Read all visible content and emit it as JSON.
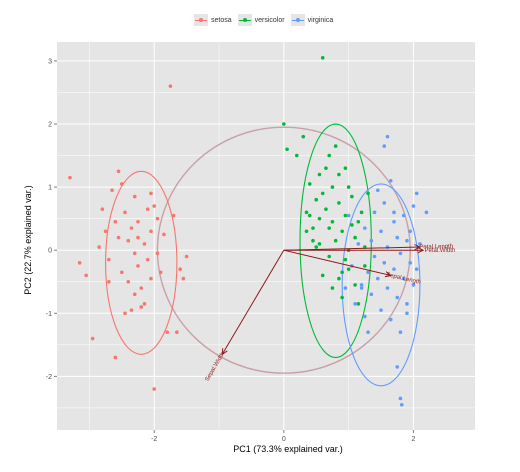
{
  "chart_data": {
    "type": "scatter",
    "xlabel": "PC1 (73.3% explained var.)",
    "ylabel": "PC2 (22.7% explained var.)",
    "xlim": [
      -3.5,
      2.95
    ],
    "ylim": [
      -2.85,
      3.3
    ],
    "xticks": [
      -2,
      0,
      2
    ],
    "yticks": [
      -2,
      -1,
      0,
      1,
      2,
      3
    ],
    "xtick_labels": [
      "-2",
      "0",
      "2"
    ],
    "ytick_labels": [
      "-2",
      "-1",
      "0",
      "1",
      "2",
      "3"
    ],
    "grid": true,
    "legend_position": "top",
    "legend": [
      "setosa",
      "versicolor",
      "virginica"
    ],
    "series": [
      {
        "name": "setosa",
        "color": "#f8766d",
        "ellipse": {
          "cx": -2.2,
          "cy": -0.2,
          "rx": 0.55,
          "ry": 1.45
        },
        "points": [
          [
            -3.3,
            1.15
          ],
          [
            -3.15,
            -0.2
          ],
          [
            -3.05,
            -0.4
          ],
          [
            -2.95,
            -1.4
          ],
          [
            -2.85,
            0.05
          ],
          [
            -2.8,
            0.65
          ],
          [
            -2.75,
            0.3
          ],
          [
            -2.7,
            -0.15
          ],
          [
            -2.65,
            0.95
          ],
          [
            -2.6,
            0.45
          ],
          [
            -2.55,
            0.2
          ],
          [
            -2.5,
            -0.35
          ],
          [
            -2.5,
            1.05
          ],
          [
            -2.45,
            0.6
          ],
          [
            -2.4,
            -0.5
          ],
          [
            -2.4,
            0.15
          ],
          [
            -2.35,
            0.35
          ],
          [
            -2.3,
            -0.05
          ],
          [
            -2.3,
            0.85
          ],
          [
            -2.25,
            -0.25
          ],
          [
            -2.25,
            0.45
          ],
          [
            -2.2,
            -0.6
          ],
          [
            -2.2,
            -0.9
          ],
          [
            -2.15,
            0.1
          ],
          [
            -2.1,
            0.65
          ],
          [
            -2.1,
            -0.15
          ],
          [
            -2.05,
            0.3
          ],
          [
            -2.05,
            -0.45
          ],
          [
            -2.0,
            0.7
          ],
          [
            -1.95,
            -0.05
          ],
          [
            -1.95,
            0.5
          ],
          [
            -1.9,
            -0.35
          ],
          [
            -1.85,
            0.25
          ],
          [
            -1.8,
            -1.3
          ],
          [
            -1.75,
            2.6
          ],
          [
            -1.7,
            0.55
          ],
          [
            -1.6,
            -0.3
          ],
          [
            -1.55,
            -0.45
          ],
          [
            -1.5,
            -0.1
          ],
          [
            -2.55,
            1.25
          ],
          [
            -2.6,
            -1.7
          ],
          [
            -2.0,
            -2.2
          ],
          [
            -2.15,
            -0.85
          ],
          [
            -2.35,
            -0.95
          ],
          [
            -1.65,
            -1.3
          ],
          [
            -2.45,
            -1.0
          ],
          [
            -2.05,
            0.9
          ],
          [
            -2.3,
            -0.7
          ],
          [
            -2.7,
            -0.5
          ],
          [
            -2.25,
            0.2
          ]
        ]
      },
      {
        "name": "versicolor",
        "color": "#00ba38",
        "ellipse": {
          "cx": 0.8,
          "cy": 0.15,
          "rx": 0.55,
          "ry": 1.85
        },
        "points": [
          [
            0.0,
            2.0
          ],
          [
            0.05,
            1.6
          ],
          [
            0.2,
            1.5
          ],
          [
            0.3,
            1.8
          ],
          [
            0.35,
            0.3
          ],
          [
            0.35,
            0.6
          ],
          [
            0.4,
            1.05
          ],
          [
            0.45,
            0.15
          ],
          [
            0.45,
            0.35
          ],
          [
            0.5,
            0.8
          ],
          [
            0.55,
            0.5
          ],
          [
            0.55,
            0.1
          ],
          [
            0.55,
            1.2
          ],
          [
            0.6,
            3.05
          ],
          [
            0.6,
            -0.4
          ],
          [
            0.65,
            0.65
          ],
          [
            0.7,
            0.35
          ],
          [
            0.7,
            -0.1
          ],
          [
            0.75,
            1.0
          ],
          [
            0.75,
            0.45
          ],
          [
            0.8,
            1.65
          ],
          [
            0.8,
            0.15
          ],
          [
            0.85,
            -0.45
          ],
          [
            0.85,
            0.75
          ],
          [
            0.9,
            0.3
          ],
          [
            0.9,
            -0.75
          ],
          [
            0.95,
            1.3
          ],
          [
            0.95,
            0.55
          ],
          [
            1.0,
            0.0
          ],
          [
            1.0,
            -0.3
          ],
          [
            1.05,
            0.85
          ],
          [
            1.05,
            0.4
          ],
          [
            1.1,
            -0.55
          ],
          [
            1.1,
            0.2
          ],
          [
            1.15,
            -0.85
          ],
          [
            1.2,
            0.6
          ],
          [
            1.25,
            0.05
          ],
          [
            1.25,
            -0.25
          ],
          [
            1.3,
            0.9
          ],
          [
            0.5,
            0.05
          ],
          [
            0.65,
            1.3
          ],
          [
            0.75,
            -0.6
          ],
          [
            0.85,
            1.2
          ],
          [
            0.95,
            -0.15
          ],
          [
            0.4,
            0.55
          ],
          [
            1.15,
            0.45
          ],
          [
            0.6,
            0.9
          ],
          [
            0.7,
            1.5
          ],
          [
            0.9,
            -0.35
          ],
          [
            1.0,
            1.0
          ]
        ]
      },
      {
        "name": "virginica",
        "color": "#619cff",
        "ellipse": {
          "cx": 1.5,
          "cy": -0.55,
          "rx": 0.6,
          "ry": 1.6
        },
        "points": [
          [
            0.95,
            -0.6
          ],
          [
            1.0,
            0.55
          ],
          [
            1.05,
            -0.25
          ],
          [
            1.1,
            -0.85
          ],
          [
            1.15,
            0.1
          ],
          [
            1.2,
            -0.55
          ],
          [
            1.25,
            0.35
          ],
          [
            1.25,
            -1.05
          ],
          [
            1.3,
            -0.35
          ],
          [
            1.35,
            0.15
          ],
          [
            1.35,
            -0.7
          ],
          [
            1.4,
            0.6
          ],
          [
            1.4,
            -0.1
          ],
          [
            1.45,
            -0.45
          ],
          [
            1.5,
            0.3
          ],
          [
            1.5,
            -0.95
          ],
          [
            1.55,
            -0.2
          ],
          [
            1.55,
            0.75
          ],
          [
            1.6,
            -0.6
          ],
          [
            1.6,
            0.05
          ],
          [
            1.65,
            -1.1
          ],
          [
            1.65,
            1.1
          ],
          [
            1.7,
            -0.3
          ],
          [
            1.7,
            0.45
          ],
          [
            1.75,
            -0.75
          ],
          [
            1.75,
            0.2
          ],
          [
            1.8,
            -0.05
          ],
          [
            1.8,
            -1.3
          ],
          [
            1.85,
            0.55
          ],
          [
            1.85,
            -0.45
          ],
          [
            1.9,
            0.15
          ],
          [
            1.9,
            -0.85
          ],
          [
            1.95,
            0.3
          ],
          [
            1.95,
            -0.2
          ],
          [
            2.0,
            0.7
          ],
          [
            2.0,
            -0.55
          ],
          [
            2.05,
            -0.3
          ],
          [
            2.05,
            0.9
          ],
          [
            2.1,
            0.1
          ],
          [
            1.6,
            1.8
          ],
          [
            1.55,
            1.65
          ],
          [
            1.75,
            -1.85
          ],
          [
            1.8,
            -2.35
          ],
          [
            1.82,
            -2.45
          ],
          [
            2.2,
            0.6
          ],
          [
            1.2,
            -0.6
          ],
          [
            1.45,
            0.95
          ],
          [
            1.3,
            -1.3
          ],
          [
            1.7,
            0.6
          ],
          [
            1.9,
            -1.0
          ]
        ]
      }
    ],
    "arrows": [
      {
        "label": "Petal.Width",
        "dx": 2.15,
        "dy": 0.0
      },
      {
        "label": "Petal.Length",
        "dx": 2.1,
        "dy": 0.05
      },
      {
        "label": "Sepal.Width",
        "dx": -0.95,
        "dy": -1.65
      },
      {
        "label": "Sepal.Length",
        "dx": 1.65,
        "dy": -0.4
      }
    ],
    "circle": {
      "cx": 0.0,
      "cy": 0.0,
      "r": 1.95,
      "color": "#c9a0a6"
    },
    "arrow_color": "#8b1a1a"
  }
}
